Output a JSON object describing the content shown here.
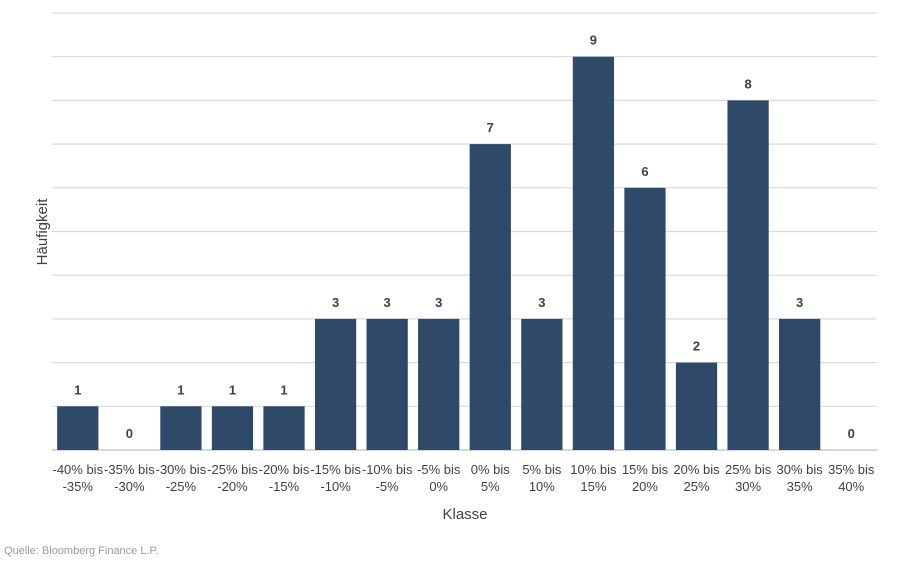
{
  "chart_data": {
    "type": "bar",
    "categories": [
      [
        "-40% bis",
        "-35%"
      ],
      [
        "-35% bis",
        "-30%"
      ],
      [
        "-30% bis",
        "-25%"
      ],
      [
        "-25% bis",
        "-20%"
      ],
      [
        "-20% bis",
        "-15%"
      ],
      [
        "-15% bis",
        "-10%"
      ],
      [
        "-10% bis",
        "-5%"
      ],
      [
        "-5% bis",
        "0%"
      ],
      [
        "0% bis",
        "5%"
      ],
      [
        "5% bis",
        "10%"
      ],
      [
        "10% bis",
        "15%"
      ],
      [
        "15% bis",
        "20%"
      ],
      [
        "20% bis",
        "25%"
      ],
      [
        "25% bis",
        "30%"
      ],
      [
        "30% bis",
        "35%"
      ],
      [
        "35% bis",
        "40%"
      ]
    ],
    "values": [
      1,
      0,
      1,
      1,
      1,
      3,
      3,
      3,
      7,
      3,
      9,
      6,
      2,
      8,
      3,
      0
    ],
    "xlabel": "Klasse",
    "ylabel": "Häufigkeit",
    "ylim": [
      0,
      10
    ],
    "grid": true,
    "colors": {
      "bar": "#2e4a68",
      "grid": "#d9d9d9",
      "axis": "#bfbfbf",
      "text": "#404040"
    }
  },
  "source": "Quelle: Bloomberg Finance L.P."
}
